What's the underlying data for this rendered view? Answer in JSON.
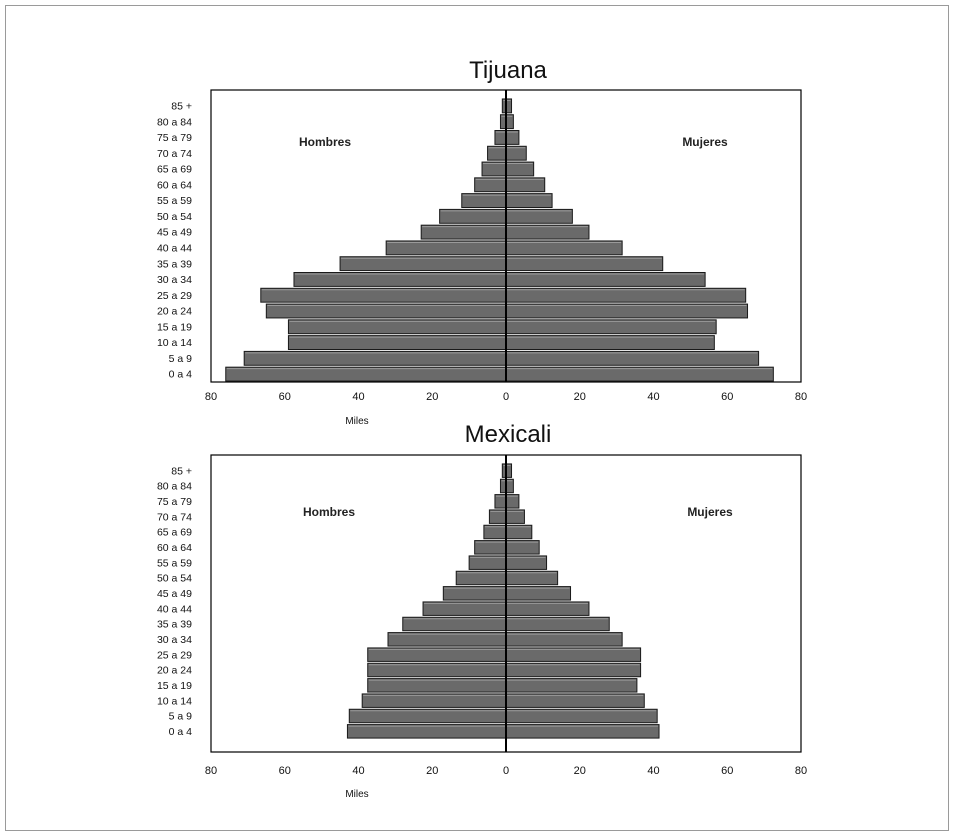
{
  "chart_data": [
    {
      "type": "bar",
      "orientation": "horizontal",
      "title": "Tijuana",
      "xlabel": "Miles",
      "xlim": [
        -80,
        80
      ],
      "x_tick_labels": [
        "80",
        "60",
        "40",
        "20",
        "0",
        "20",
        "40",
        "60",
        "80"
      ],
      "categories": [
        "85 +",
        "80 a 84",
        "75 a 79",
        "70 a 74",
        "65 a 69",
        "60 a 64",
        "55 a 59",
        "50 a 54",
        "45 a 49",
        "40 a 44",
        "35 a 39",
        "30 a 34",
        "25 a 29",
        "20 a 24",
        "15 a 19",
        "10 a 14",
        "5 a 9",
        "0 a 4"
      ],
      "series": [
        {
          "name": "Hombres",
          "values": [
            1,
            1.5,
            3,
            5,
            6.5,
            8.5,
            12,
            18,
            23,
            32.5,
            45,
            57.5,
            66.5,
            65,
            59,
            59,
            71,
            76
          ]
        },
        {
          "name": "Mujeres",
          "values": [
            1.5,
            2,
            3.5,
            5.5,
            7.5,
            10.5,
            12.5,
            18,
            22.5,
            31.5,
            42.5,
            54,
            65,
            65.5,
            57,
            56.5,
            68.5,
            72.5
          ]
        }
      ],
      "colors": {
        "bar": "#6a6a6a",
        "bar_edge": "#1a1a1a",
        "axis": "#000000"
      }
    },
    {
      "type": "bar",
      "orientation": "horizontal",
      "title": "Mexicali",
      "xlabel": "Miles",
      "xlim": [
        -80,
        80
      ],
      "x_tick_labels": [
        "80",
        "60",
        "40",
        "20",
        "0",
        "20",
        "40",
        "60",
        "80"
      ],
      "categories": [
        "85 +",
        "80 a 84",
        "75 a 79",
        "70 a 74",
        "65 a 69",
        "60 a 64",
        "55 a 59",
        "50 a 54",
        "45 a 49",
        "40 a 44",
        "35 a 39",
        "30 a 34",
        "25 a 29",
        "20 a 24",
        "15 a 19",
        "10 a 14",
        "5 a 9",
        "0 a 4"
      ],
      "series": [
        {
          "name": "Hombres",
          "values": [
            1,
            1.5,
            3,
            4.5,
            6,
            8.5,
            10,
            13.5,
            17,
            22.5,
            28,
            32,
            37.5,
            37.5,
            37.5,
            39,
            42.5,
            43
          ]
        },
        {
          "name": "Mujeres",
          "values": [
            1.5,
            2,
            3.5,
            5,
            7,
            9,
            11,
            14,
            17.5,
            22.5,
            28,
            31.5,
            36.5,
            36.5,
            35.5,
            37.5,
            41,
            41.5
          ]
        }
      ],
      "colors": {
        "bar": "#6a6a6a",
        "bar_edge": "#1a1a1a",
        "axis": "#000000"
      }
    }
  ]
}
